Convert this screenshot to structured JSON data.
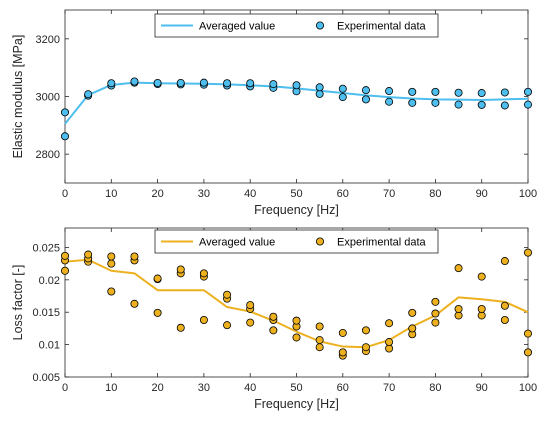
{
  "chart_data": [
    {
      "type": "line",
      "xlabel": "Frequency [Hz]",
      "ylabel": "Elastic modulus [MPa]",
      "xlim": [
        0,
        100
      ],
      "ylim": [
        2700,
        3300
      ],
      "xticks": [
        0,
        10,
        20,
        30,
        40,
        50,
        60,
        70,
        80,
        90,
        100
      ],
      "yticks": [
        2800,
        3000,
        3200
      ],
      "grid": false,
      "legend_position": "top-center",
      "color": "#4DBEEE",
      "series": [
        {
          "name": "Averaged value",
          "kind": "line",
          "x": [
            0,
            5,
            10,
            15,
            20,
            25,
            30,
            35,
            40,
            45,
            50,
            55,
            60,
            65,
            70,
            75,
            80,
            85,
            90,
            95,
            100
          ],
          "y": [
            2905,
            3005,
            3040,
            3048,
            3046,
            3045,
            3044,
            3042,
            3039,
            3035,
            3028,
            3020,
            3012,
            3004,
            2998,
            2993,
            2990,
            2989,
            2988,
            2990,
            2992
          ]
        },
        {
          "name": "Experimental data",
          "kind": "scatter",
          "x": [
            0,
            0,
            5,
            5,
            10,
            10,
            15,
            15,
            20,
            20,
            25,
            25,
            30,
            30,
            35,
            35,
            40,
            40,
            45,
            45,
            50,
            50,
            55,
            55,
            60,
            60,
            65,
            65,
            70,
            70,
            75,
            75,
            80,
            80,
            85,
            85,
            90,
            90,
            95,
            95,
            100,
            100
          ],
          "y": [
            2862,
            2945,
            3003,
            3008,
            3038,
            3046,
            3048,
            3052,
            3043,
            3047,
            3042,
            3047,
            3041,
            3048,
            3038,
            3046,
            3035,
            3046,
            3030,
            3043,
            3018,
            3039,
            3009,
            3032,
            2998,
            3027,
            2990,
            3022,
            2982,
            3019,
            2978,
            3016,
            2978,
            3016,
            2972,
            3013,
            2971,
            3012,
            2969,
            3014,
            2972,
            3016
          ]
        }
      ]
    },
    {
      "type": "line",
      "xlabel": "Frequency [Hz]",
      "ylabel": "Loss factor [-]",
      "xlim": [
        0,
        100
      ],
      "ylim": [
        0.005,
        0.028
      ],
      "xticks": [
        0,
        10,
        20,
        30,
        40,
        50,
        60,
        70,
        80,
        90,
        100
      ],
      "yticks": [
        0.005,
        0.01,
        0.015,
        0.02,
        0.025
      ],
      "ytick_labels": [
        "0.005",
        "0.01",
        "0.015",
        "0.02",
        "0.025"
      ],
      "grid": false,
      "legend_position": "top-center",
      "color": "#EDB120",
      "series": [
        {
          "name": "Averaged value",
          "kind": "line",
          "x": [
            0,
            5,
            10,
            15,
            20,
            25,
            30,
            35,
            40,
            45,
            50,
            55,
            60,
            65,
            70,
            75,
            80,
            85,
            90,
            95,
            100
          ],
          "y": [
            0.0228,
            0.0231,
            0.0214,
            0.021,
            0.0184,
            0.0184,
            0.0184,
            0.0158,
            0.0151,
            0.0137,
            0.012,
            0.0105,
            0.0097,
            0.0096,
            0.0107,
            0.0128,
            0.0145,
            0.0173,
            0.017,
            0.0166,
            0.015
          ]
        },
        {
          "name": "Experimental data",
          "kind": "scatter",
          "x": [
            0,
            0,
            0,
            5,
            5,
            5,
            10,
            10,
            10,
            15,
            15,
            15,
            20,
            20,
            20,
            25,
            25,
            25,
            30,
            30,
            30,
            35,
            35,
            35,
            40,
            40,
            40,
            45,
            45,
            45,
            50,
            50,
            50,
            55,
            55,
            55,
            60,
            60,
            60,
            65,
            65,
            65,
            70,
            70,
            70,
            75,
            75,
            75,
            80,
            80,
            80,
            85,
            85,
            85,
            90,
            90,
            90,
            95,
            95,
            95,
            100,
            100,
            100
          ],
          "y": [
            0.0214,
            0.023,
            0.0237,
            0.0228,
            0.0233,
            0.0239,
            0.0182,
            0.0225,
            0.0236,
            0.0163,
            0.023,
            0.0236,
            0.0149,
            0.0201,
            0.0202,
            0.0126,
            0.021,
            0.0216,
            0.0138,
            0.0205,
            0.021,
            0.013,
            0.0171,
            0.0177,
            0.0134,
            0.0155,
            0.0161,
            0.0122,
            0.0138,
            0.0143,
            0.0111,
            0.0128,
            0.0137,
            0.0096,
            0.0107,
            0.0128,
            0.0083,
            0.0088,
            0.0118,
            0.009,
            0.0096,
            0.0122,
            0.0094,
            0.0104,
            0.0133,
            0.0116,
            0.0125,
            0.0149,
            0.0134,
            0.0148,
            0.0166,
            0.0145,
            0.0155,
            0.0218,
            0.0145,
            0.0155,
            0.0205,
            0.0138,
            0.016,
            0.0229,
            0.0088,
            0.0117,
            0.0242
          ]
        }
      ]
    }
  ]
}
